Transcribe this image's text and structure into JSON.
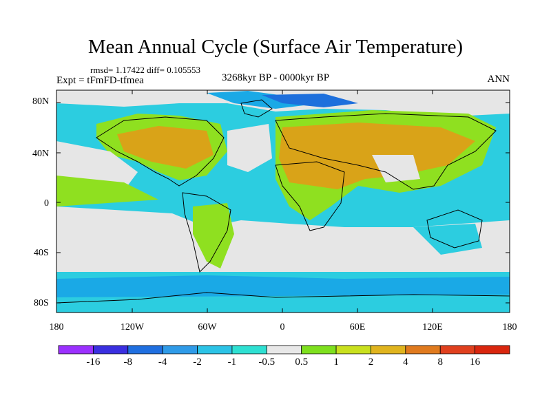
{
  "title": "Mean Annual Cycle (Surface Air Temperature)",
  "stats": "rmsd= 1.17422 diff= 0.105553",
  "experiment": "Expt = tFmFD-tfmea",
  "period": "3268kyr BP - 0000kyr BP",
  "season": "ANN",
  "lat_ticks": [
    "80N",
    "40N",
    "0",
    "40S",
    "80S"
  ],
  "lon_ticks": [
    "180",
    "120W",
    "60W",
    "0",
    "60E",
    "120E",
    "180"
  ],
  "colorbar": {
    "labels": [
      "-16",
      "-8",
      "-4",
      "-2",
      "-1",
      "-0.5",
      "0.5",
      "1",
      "2",
      "4",
      "8",
      "16"
    ],
    "colors": [
      "#9b30ff",
      "#3a2fe0",
      "#1f6fe0",
      "#2f9be8",
      "#2cc3e6",
      "#2ee0d2",
      "#e8e8e8",
      "#7ee01e",
      "#c9e01e",
      "#e0b41e",
      "#e07a1e",
      "#e0401e",
      "#d9260e"
    ]
  },
  "palette": {
    "ocean": "#2ccde0",
    "neutral": "#e6e6e6",
    "warm1": "#8fe020",
    "warm2": "#c8cc1e",
    "warm3": "#d9a318",
    "cool1": "#1aa9e6",
    "cool2": "#1d6fdc"
  }
}
